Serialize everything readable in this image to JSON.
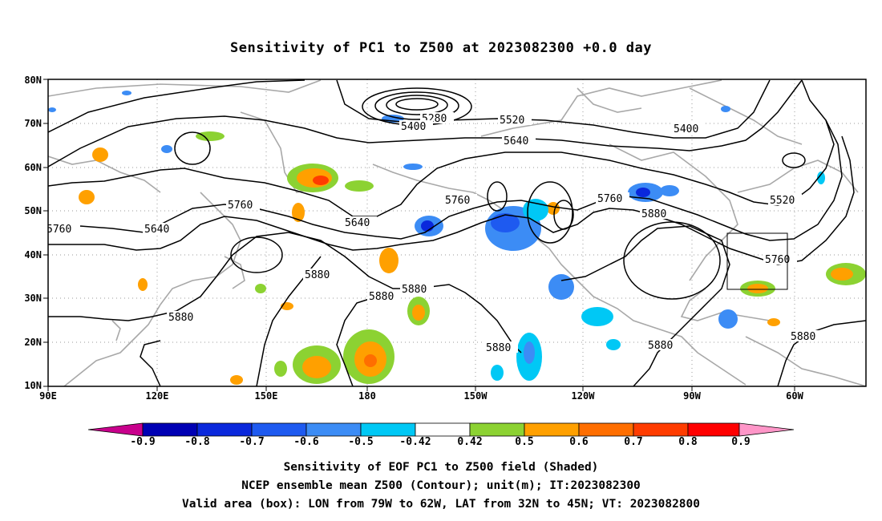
{
  "title": "Sensitivity of PC1 to Z500 at 2023082300 +0.0 day",
  "map": {
    "lat_labels": [
      "80N",
      "70N",
      "60N",
      "50N",
      "40N",
      "30N",
      "20N",
      "10N"
    ],
    "lon_labels": [
      "90E",
      "120E",
      "150E",
      "180",
      "150W",
      "120W",
      "90W",
      "60W"
    ],
    "contour_labels": [
      "5280",
      "5400",
      "5520",
      "5400",
      "5640",
      "5760",
      "5760",
      "5640",
      "5760",
      "5880",
      "5520",
      "5640",
      "5760",
      "5760",
      "5880",
      "5880",
      "5880",
      "5880",
      "5880",
      "5880",
      "5880"
    ],
    "valid_box": {
      "lon_from": "79W",
      "lon_to": "62W",
      "lat_from": "32N",
      "lat_to": "45N"
    },
    "colors": {
      "contour": "#000000",
      "coastline": "#a8a8a8",
      "grid": "#9a9a9a"
    }
  },
  "colorbar": {
    "labels": [
      "-0.9",
      "-0.8",
      "-0.7",
      "-0.6",
      "-0.5",
      "-0.42",
      "0.42",
      "0.5",
      "0.6",
      "0.7",
      "0.8",
      "0.9"
    ],
    "colors": [
      "#c8008c",
      "#0000b4",
      "#0a28dc",
      "#1e5af0",
      "#3c8cf5",
      "#00c8f5",
      "#ffffff",
      "#8cd232",
      "#ffa000",
      "#ff6e00",
      "#ff3c00",
      "#ff0000",
      "#ff96c8"
    ]
  },
  "caption": {
    "line1": "Sensitivity of EOF PC1 to Z500 field (Shaded)",
    "line2": "NCEP ensemble mean Z500 (Contour); unit(m); IT:2023082300",
    "line3": "Valid area (box): LON from 79W to 62W, LAT from 32N to 45N; VT: 2023082800"
  }
}
